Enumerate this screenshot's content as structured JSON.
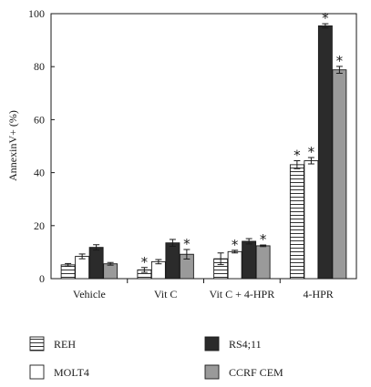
{
  "chart_data": {
    "type": "bar",
    "title": "",
    "xlabel": "",
    "ylabel": "AnnexinV+ (%)",
    "ylim": [
      0,
      100
    ],
    "yticks": [
      "0",
      "20",
      "40",
      "60",
      "80",
      "100"
    ],
    "grid": false,
    "legend_position": "bottom",
    "significance_marker": "*",
    "categories": [
      "Vehicle",
      "Vit C",
      "Vit C + 4-HPR",
      "4-HPR"
    ],
    "series": [
      {
        "name": "REH",
        "pattern": "horizontal-lines",
        "color": "#ffffff",
        "values": [
          5.2,
          3.3,
          7.5,
          43
        ],
        "errors": [
          0.5,
          0.9,
          2.2,
          1.5
        ],
        "significant": [
          false,
          true,
          false,
          true
        ]
      },
      {
        "name": "MOLT4",
        "pattern": "solid",
        "color": "#ffffff",
        "values": [
          8.4,
          6.4,
          10.2,
          44.5
        ],
        "errors": [
          0.9,
          0.8,
          0.5,
          1.2
        ],
        "significant": [
          false,
          false,
          true,
          true
        ]
      },
      {
        "name": "RS4;11",
        "pattern": "solid",
        "color": "#2b2b2b",
        "values": [
          11.8,
          13.5,
          14.1,
          95.4
        ],
        "errors": [
          1.0,
          1.3,
          1.0,
          0.8
        ],
        "significant": [
          false,
          false,
          false,
          true
        ]
      },
      {
        "name": "CCRF CEM",
        "pattern": "solid",
        "color": "#9a9a9a",
        "values": [
          5.6,
          9.2,
          12.4,
          78.8
        ],
        "errors": [
          0.5,
          1.8,
          0.3,
          1.3
        ],
        "significant": [
          false,
          true,
          true,
          true
        ]
      }
    ]
  }
}
